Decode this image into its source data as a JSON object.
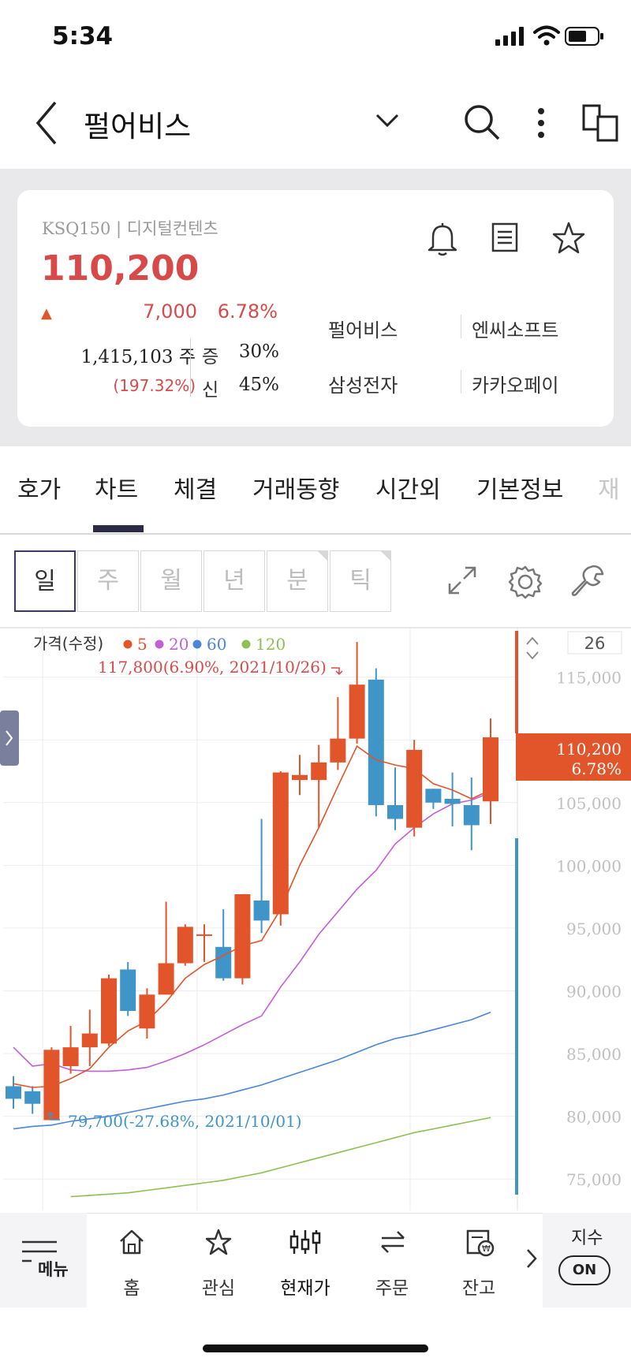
{
  "status_bar": {
    "time": "5:34"
  },
  "header": {
    "title": "펄어비스"
  },
  "summary": {
    "market_sector": "KSQ150 | 디지털컨텐츠",
    "price": "110,200",
    "change_arrow": "▲",
    "change": "7,000",
    "change_pct": "6.78%",
    "volume": "1,415,103 주",
    "volume_ratio": "(197.32%)",
    "margin_label": "증",
    "margin_value": "30%",
    "credit_label": "신",
    "credit_value": "45%",
    "related": [
      "펄어비스",
      "엔씨소프트",
      "삼성전자",
      "카카오페이"
    ]
  },
  "tabs": [
    "호가",
    "차트",
    "체결",
    "거래동향",
    "시간외",
    "기본정보",
    "재"
  ],
  "active_tab": "차트",
  "periods": [
    "일",
    "주",
    "월",
    "년",
    "분",
    "틱"
  ],
  "active_period": "일",
  "chart_data": {
    "type": "candlestick",
    "legend": {
      "label": "가격(수정)",
      "ma": [
        "5",
        "20",
        "60",
        "120"
      ]
    },
    "ma_colors": [
      "#e2542a",
      "#c35fd6",
      "#4a86d8",
      "#8fbf52"
    ],
    "up_color": "#e2542a",
    "down_color": "#3f94c8",
    "visible_count": "26",
    "y_ticks": [
      "115,000",
      "110,000",
      "105,000",
      "100,000",
      "95,000",
      "90,000",
      "85,000",
      "80,000",
      "75,000"
    ],
    "ylim": [
      72500,
      119000
    ],
    "current_price": "110,200",
    "current_pct": "6.78%",
    "high_annotation": "117,800(6.90%, 2021/10/26)",
    "low_annotation": "79,700(-27.68%, 2021/10/01)",
    "candles": [
      {
        "o": 82400,
        "c": 81400,
        "h": 83200,
        "l": 80600
      },
      {
        "o": 82000,
        "c": 81000,
        "h": 82400,
        "l": 80200
      },
      {
        "o": 79700,
        "c": 85300,
        "h": 85500,
        "l": 79700
      },
      {
        "o": 84000,
        "c": 85500,
        "h": 87200,
        "l": 83400
      },
      {
        "o": 85500,
        "c": 86600,
        "h": 88500,
        "l": 84000
      },
      {
        "o": 85800,
        "c": 91000,
        "h": 91300,
        "l": 85600
      },
      {
        "o": 91700,
        "c": 88400,
        "h": 92300,
        "l": 88000
      },
      {
        "o": 87000,
        "c": 89700,
        "h": 90200,
        "l": 86200
      },
      {
        "o": 89700,
        "c": 92200,
        "h": 97100,
        "l": 89700
      },
      {
        "o": 92200,
        "c": 95100,
        "h": 95300,
        "l": 92000
      },
      {
        "o": 94500,
        "c": 94500,
        "h": 95300,
        "l": 92300
      },
      {
        "o": 93500,
        "c": 91000,
        "h": 96500,
        "l": 90800
      },
      {
        "o": 91000,
        "c": 97700,
        "h": 97700,
        "l": 90500
      },
      {
        "o": 97200,
        "c": 95600,
        "h": 103700,
        "l": 94600
      },
      {
        "o": 96100,
        "c": 107400,
        "h": 107500,
        "l": 95200
      },
      {
        "o": 106800,
        "c": 107200,
        "h": 108800,
        "l": 105600
      },
      {
        "o": 106800,
        "c": 108200,
        "h": 109600,
        "l": 103000
      },
      {
        "o": 108200,
        "c": 110100,
        "h": 113400,
        "l": 107600
      },
      {
        "o": 110100,
        "c": 114400,
        "h": 117800,
        "l": 109700
      },
      {
        "o": 114800,
        "c": 104800,
        "h": 115700,
        "l": 103900
      },
      {
        "o": 104800,
        "c": 103700,
        "h": 107800,
        "l": 102800
      },
      {
        "o": 103000,
        "c": 109200,
        "h": 110000,
        "l": 102300
      },
      {
        "o": 106100,
        "c": 105000,
        "h": 106100,
        "l": 104500
      },
      {
        "o": 105300,
        "c": 104900,
        "h": 107400,
        "l": 103100
      },
      {
        "o": 104800,
        "c": 103200,
        "h": 107000,
        "l": 101200
      },
      {
        "o": 105100,
        "c": 110200,
        "h": 111700,
        "l": 103300
      }
    ],
    "ma5": [
      82600,
      82300,
      82400,
      83000,
      83800,
      85500,
      86800,
      87600,
      89100,
      91000,
      92100,
      92800,
      93600,
      94000,
      96500,
      100000,
      103000,
      106300,
      109500,
      108400,
      108000,
      107700,
      106500,
      106000,
      105300,
      106000
    ],
    "ma20": [
      85500,
      84000,
      84200,
      83700,
      83600,
      83600,
      83700,
      83900,
      84400,
      85000,
      85700,
      86500,
      87300,
      88000,
      90300,
      92300,
      94500,
      96300,
      98100,
      99600,
      101700,
      103000,
      104100,
      104900,
      105200,
      105800
    ],
    "ma60": [
      79000,
      79200,
      79300,
      79600,
      79800,
      80000,
      80300,
      80600,
      80900,
      81200,
      81400,
      81700,
      82100,
      82500,
      83000,
      83500,
      84000,
      84500,
      85100,
      85700,
      86200,
      86500,
      86900,
      87300,
      87700,
      88300
    ],
    "ma120": [
      null,
      null,
      null,
      73600,
      73700,
      73800,
      73900,
      74100,
      74300,
      74500,
      74700,
      74900,
      75200,
      75500,
      75900,
      76300,
      76700,
      77100,
      77500,
      77900,
      78300,
      78700,
      79000,
      79300,
      79600,
      79900
    ]
  },
  "bottom_nav": {
    "menu": "메뉴",
    "items": [
      "홈",
      "관심",
      "현재가",
      "주문",
      "잔고"
    ],
    "index_label": "지수",
    "index_toggle": "ON"
  }
}
